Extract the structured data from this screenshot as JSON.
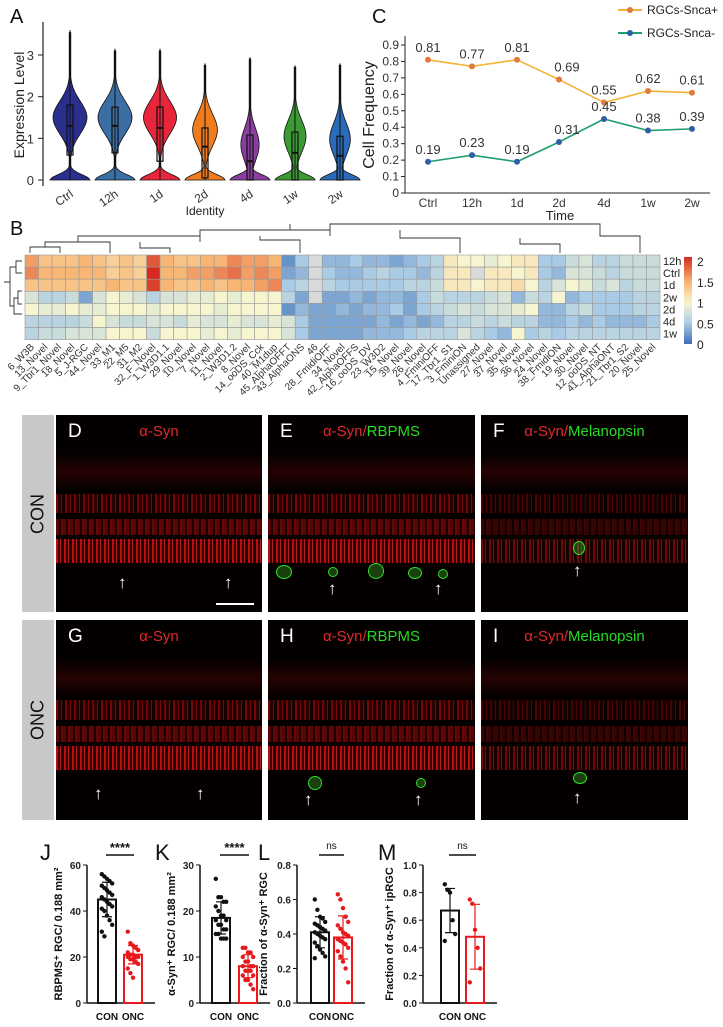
{
  "panel_letters": {
    "A": "A",
    "B": "B",
    "C": "C",
    "D": "D",
    "E": "E",
    "F": "F",
    "G": "G",
    "H": "H",
    "I": "I",
    "J": "J",
    "K": "K",
    "L": "L",
    "M": "M"
  },
  "microscopy": {
    "row_labels": [
      "CON",
      "ONC"
    ],
    "marker_red": "α-Syn",
    "separator": "/",
    "marker_rbpms": "RBPMS",
    "marker_melanopsin": "Melanopsin",
    "colors": {
      "red": "#e0282a",
      "green": "#22dd22"
    },
    "icons": {
      "arrow": "up-arrow-icon",
      "scale": "scale-bar"
    }
  },
  "chart_data": [
    {
      "id": "A",
      "type": "violin",
      "ylabel": "Expression Level",
      "xlabel": "Identity",
      "ylim": [
        0,
        3.7
      ],
      "yticks": [
        0,
        1,
        2,
        3
      ],
      "categories": [
        "Ctrl",
        "12h",
        "1d",
        "2d",
        "4d",
        "1w",
        "2w"
      ],
      "colors": [
        "#2a2f8e",
        "#3b6ea5",
        "#e8263b",
        "#f07c1e",
        "#8a3fa0",
        "#3c9a34",
        "#2a6ab8"
      ],
      "q1": [
        0.6,
        0.65,
        0.45,
        0.05,
        0.0,
        0.0,
        0.0
      ],
      "median": [
        1.3,
        1.3,
        1.25,
        0.8,
        0.45,
        0.65,
        0.58
      ],
      "q3": [
        1.8,
        1.75,
        1.75,
        1.25,
        1.08,
        1.15,
        1.05
      ],
      "max": [
        3.6,
        3.15,
        3.15,
        2.8,
        2.95,
        2.75,
        2.8
      ]
    },
    {
      "id": "B",
      "type": "heatmap",
      "rows": [
        "12h",
        "Ctrl",
        "1d",
        "2w",
        "2d",
        "4d",
        "1w"
      ],
      "columns": [
        "6_W3B",
        "13_Novel",
        "9_Tbr1_Novel",
        "18_Novel",
        "5_J-RGC",
        "44_Novel",
        "33_M1",
        "22_M5",
        "31_M2",
        "32_F_Novel",
        "1_W3D1.1",
        "29_Novel",
        "10_Novel",
        "7_Novel",
        "11_Novel",
        "2_W3D1.2",
        "8_Novel",
        "14_ooDS_Cck",
        "40_M1dup",
        "45_AlphaOFFT",
        "43_AlphaONS",
        "46",
        "28_FmidiOFF",
        "34_Novel",
        "42_AlphaOFFS",
        "16_ooDS_DV",
        "23_W3D2",
        "15_Novel",
        "39_Novel",
        "26_Novel",
        "4_FminiOFF",
        "17_Tbr1_S1",
        "3_FminiON",
        "Unassigned",
        "27_Novel",
        "37_Novel",
        "35_Novel",
        "36_Novel",
        "24_Novel",
        "38_FmidiON",
        "19_Novel",
        "30_Novel",
        "12_ooDS_NT",
        "41_AlphaONT",
        "21_Tbr1_S2",
        "20_Novel",
        "25_Novel"
      ],
      "values": [
        [
          1.6,
          1.4,
          1.4,
          1.4,
          1.5,
          1.4,
          1.3,
          1.4,
          1.3,
          1.9,
          1.5,
          1.4,
          1.4,
          1.5,
          1.5,
          1.7,
          1.6,
          1.6,
          1.5,
          0.2,
          0.5,
          null,
          0.4,
          0.4,
          0.5,
          0.4,
          0.4,
          0.3,
          0.4,
          0.5,
          0.6,
          1.1,
          1.0,
          1.0,
          0.9,
          1.0,
          1.1,
          1.1,
          0.5,
          0.5,
          0.7,
          0.8,
          0.6,
          0.6,
          0.7,
          0.7,
          0.7
        ],
        [
          1.7,
          1.5,
          1.5,
          1.5,
          1.5,
          1.5,
          1.3,
          1.4,
          1.3,
          2.2,
          1.5,
          1.5,
          1.6,
          1.6,
          1.7,
          1.8,
          1.6,
          1.7,
          1.6,
          0.3,
          0.4,
          null,
          0.5,
          0.4,
          0.4,
          0.5,
          0.6,
          0.5,
          0.5,
          0.4,
          0.6,
          1.1,
          1.1,
          null,
          1.1,
          1.1,
          1.0,
          1.1,
          0.5,
          0.4,
          0.8,
          0.8,
          0.7,
          0.6,
          0.7,
          0.7,
          0.7
        ],
        [
          1.4,
          1.4,
          1.4,
          1.4,
          1.4,
          1.4,
          1.5,
          1.4,
          1.4,
          2.0,
          1.5,
          1.4,
          1.4,
          1.5,
          1.4,
          1.5,
          1.5,
          1.6,
          1.7,
          0.5,
          0.6,
          null,
          0.6,
          0.5,
          0.5,
          0.5,
          0.5,
          0.5,
          0.6,
          0.6,
          0.7,
          1.1,
          1.1,
          1.0,
          1.1,
          1.1,
          1.2,
          1.0,
          0.6,
          0.8,
          1.0,
          0.9,
          0.7,
          0.8,
          0.6,
          0.7,
          0.7
        ],
        [
          0.8,
          0.6,
          0.6,
          0.7,
          0.3,
          0.8,
          1.0,
          0.9,
          0.8,
          0.6,
          0.8,
          0.8,
          0.9,
          0.9,
          1.0,
          0.9,
          1.0,
          1.0,
          1.0,
          0.6,
          0.3,
          null,
          0.3,
          0.3,
          0.4,
          0.3,
          0.4,
          0.4,
          0.3,
          0.5,
          0.7,
          0.6,
          0.6,
          0.6,
          0.7,
          0.8,
          0.4,
          0.7,
          0.6,
          1.0,
          0.4,
          0.5,
          0.5,
          0.5,
          0.5,
          0.6,
          0.6
        ],
        [
          1.0,
          0.9,
          0.9,
          1.0,
          0.9,
          0.9,
          1.0,
          1.0,
          1.0,
          0.9,
          1.0,
          1.0,
          1.0,
          1.0,
          0.9,
          1.0,
          1.0,
          1.0,
          1.0,
          0.2,
          0.4,
          0.3,
          0.3,
          0.4,
          0.3,
          0.4,
          0.4,
          0.5,
          0.3,
          0.5,
          0.6,
          0.7,
          0.8,
          0.7,
          0.8,
          0.8,
          0.9,
          1.0,
          0.4,
          0.4,
          0.6,
          0.7,
          0.5,
          0.5,
          0.5,
          0.6,
          0.6
        ],
        [
          0.6,
          0.6,
          0.6,
          0.6,
          0.7,
          1.0,
          0.8,
          0.7,
          0.7,
          0.8,
          0.8,
          0.7,
          0.9,
          0.8,
          0.8,
          0.9,
          0.8,
          0.8,
          0.9,
          0.8,
          0.5,
          0.3,
          0.3,
          0.3,
          0.3,
          0.3,
          0.4,
          0.3,
          0.4,
          0.3,
          0.4,
          0.6,
          0.6,
          0.7,
          0.6,
          0.7,
          0.6,
          0.6,
          0.4,
          0.4,
          0.5,
          0.4,
          0.5,
          0.4,
          0.4,
          0.4,
          0.5
        ],
        [
          0.6,
          0.7,
          0.7,
          0.8,
          0.8,
          0.8,
          1.0,
          1.0,
          1.0,
          0.7,
          1.0,
          1.0,
          1.0,
          0.9,
          1.0,
          0.9,
          1.0,
          1.0,
          1.0,
          0.8,
          0.5,
          0.3,
          0.3,
          0.3,
          0.3,
          0.4,
          0.4,
          0.4,
          0.5,
          0.6,
          0.6,
          0.6,
          0.8,
          0.6,
          0.5,
          0.4,
          1.0,
          0.5,
          0.6,
          0.5,
          0.6,
          0.6,
          0.6,
          0.6,
          0.6,
          0.6,
          0.6
        ]
      ],
      "colorbar": {
        "range": [
          0,
          2.1
        ],
        "ticks": [
          "2",
          "1.5",
          "1",
          "0.5",
          "0"
        ],
        "tick_values": [
          2,
          1.5,
          1,
          0.5,
          0
        ],
        "colors": [
          "#3a6db4",
          "#a9cbe5",
          "#f7f5cf",
          "#f8b674",
          "#d42a1f"
        ],
        "na_color": "#d9d9d9"
      }
    },
    {
      "id": "C",
      "type": "line",
      "ylabel": "Cell Frequency",
      "xlabel": "Time",
      "ylim": [
        0,
        0.9
      ],
      "yticks": [
        "0",
        "0.1",
        "0.2",
        "0.3",
        "0.4",
        "0.5",
        "0.6",
        "0.7",
        "0.8",
        "0.9"
      ],
      "categories": [
        "Ctrl",
        "12h",
        "1d",
        "2d",
        "4d",
        "1w",
        "2w"
      ],
      "legend": "top-right",
      "series": [
        {
          "name": "RGCs-Snca+",
          "line_color": "#f2b233",
          "marker_color": "#e07b39",
          "values": [
            0.81,
            0.77,
            0.81,
            0.69,
            0.55,
            0.62,
            0.61
          ],
          "labels": [
            "0.81",
            "0.77",
            "0.81",
            "0.69",
            "0.55",
            "0.62",
            "0.61"
          ]
        },
        {
          "name": "RGCs-Snca-",
          "line_color": "#1f9e6e",
          "marker_color": "#2f5fa8",
          "values": [
            0.19,
            0.23,
            0.19,
            0.31,
            0.45,
            0.38,
            0.39
          ],
          "labels": [
            "0.19",
            "0.23",
            "0.19",
            "0.31",
            "0.45",
            "0.38",
            "0.39"
          ]
        }
      ]
    },
    {
      "id": "J",
      "type": "bar",
      "ylabel": "RBPMS⁺ RGC/ 0.188 mm²",
      "ylim": [
        0,
        60
      ],
      "yticks": [
        "0",
        "20",
        "40",
        "60"
      ],
      "categories": [
        "CON",
        "ONC"
      ],
      "colors": [
        "#111111",
        "#e8191c"
      ],
      "values": [
        45,
        21
      ],
      "sd": [
        7.5,
        4
      ],
      "significance": "****",
      "points": [
        [
          56,
          55,
          54,
          53,
          52,
          51,
          50,
          49,
          48,
          47,
          46,
          45,
          44,
          43,
          42,
          41,
          40,
          38,
          36,
          34,
          31,
          29
        ],
        [
          31,
          26,
          25,
          24,
          23,
          22,
          21,
          21,
          20,
          20,
          20,
          19,
          19,
          18,
          17,
          15,
          13,
          11
        ]
      ]
    },
    {
      "id": "K",
      "type": "bar",
      "ylabel": "α-Syn⁺ RGC/ 0.188 mm²",
      "ylim": [
        0,
        30
      ],
      "yticks": [
        "0",
        "10",
        "20",
        "30"
      ],
      "categories": [
        "CON",
        "ONC"
      ],
      "colors": [
        "#111111",
        "#e8191c"
      ],
      "values": [
        18.5,
        8
      ],
      "sd": [
        3.5,
        2.5
      ],
      "significance": "****",
      "points": [
        [
          27,
          23,
          23,
          22,
          22,
          21,
          20,
          19,
          19,
          18,
          18,
          17,
          17,
          16,
          16,
          15,
          15,
          14,
          14,
          14
        ],
        [
          12,
          12,
          11,
          11,
          10,
          10,
          9,
          9,
          8,
          8,
          8,
          7,
          7,
          7,
          6,
          6,
          5,
          5,
          4,
          3
        ]
      ]
    },
    {
      "id": "L",
      "type": "bar",
      "ylabel": "Fraction of α-Syn⁺ RGC",
      "ylim": [
        0,
        0.8
      ],
      "yticks": [
        "0.0",
        "0.2",
        "0.4",
        "0.6",
        "0.8"
      ],
      "categories": [
        "CON",
        "ONC"
      ],
      "colors": [
        "#111111",
        "#e8191c"
      ],
      "values": [
        0.41,
        0.38
      ],
      "sd": [
        0.09,
        0.125
      ],
      "significance": "ns",
      "points": [
        [
          0.6,
          0.54,
          0.5,
          0.49,
          0.47,
          0.46,
          0.45,
          0.44,
          0.43,
          0.42,
          0.41,
          0.4,
          0.39,
          0.38,
          0.37,
          0.35,
          0.33,
          0.31,
          0.29,
          0.27,
          0.26
        ],
        [
          0.63,
          0.6,
          0.55,
          0.5,
          0.47,
          0.45,
          0.43,
          0.41,
          0.4,
          0.39,
          0.37,
          0.36,
          0.35,
          0.34,
          0.32,
          0.3,
          0.27,
          0.24,
          0.2,
          0.12
        ]
      ]
    },
    {
      "id": "M",
      "type": "bar",
      "ylabel": "Fraction of α-Syn⁺ ipRGC",
      "ylim": [
        0,
        1.0
      ],
      "yticks": [
        "0.0",
        "0.2",
        "0.4",
        "0.6",
        "0.8",
        "1.0"
      ],
      "categories": [
        "CON",
        "ONC"
      ],
      "colors": [
        "#111111",
        "#e8191c"
      ],
      "values": [
        0.67,
        0.48
      ],
      "sd": [
        0.16,
        0.235
      ],
      "significance": "ns",
      "points": [
        [
          0.86,
          0.82,
          0.8,
          0.6,
          0.5,
          0.45
        ],
        [
          0.75,
          0.72,
          0.53,
          0.4,
          0.25,
          0.15
        ]
      ]
    }
  ]
}
